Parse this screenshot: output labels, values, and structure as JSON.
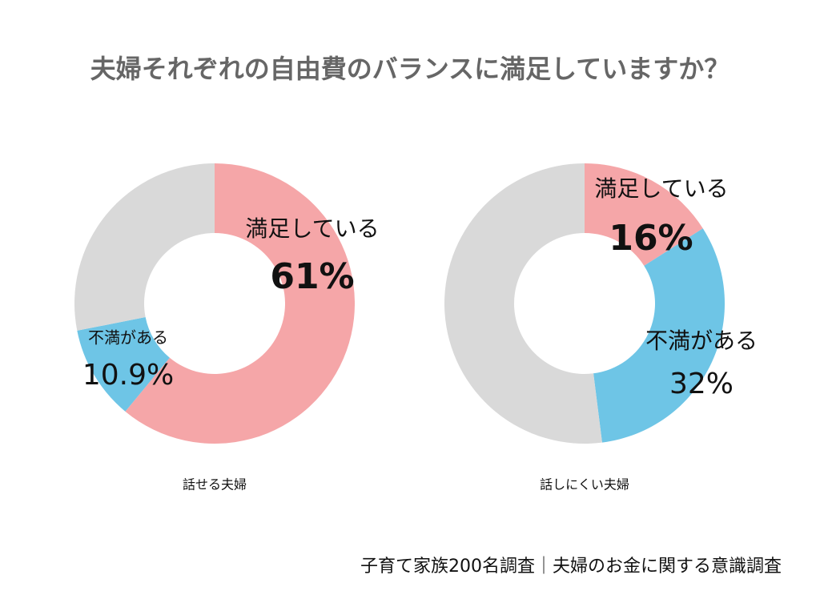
{
  "title": "夫婦それぞれの自由費のバランスに満足していますか？",
  "footnote": "子育て家族200名調査｜夫婦のお金に関する意識調査",
  "chart_data": [
    {
      "type": "pie",
      "label": "話せる夫婦",
      "categories": [
        "満足している",
        "不満がある",
        null
      ],
      "values": [
        61,
        10.9,
        28.1
      ],
      "value_labels": [
        "61%",
        "10.9%",
        null
      ],
      "colors": [
        "#f5a6a8",
        "#6ec5e6",
        "#d9d9d9"
      ]
    },
    {
      "type": "pie",
      "label": "話しにくい夫婦",
      "categories": [
        "満足している",
        "不満がある",
        null
      ],
      "values": [
        16,
        32,
        52
      ],
      "value_labels": [
        "16%",
        "32%",
        null
      ],
      "colors": [
        "#f5a6a8",
        "#6ec5e6",
        "#d9d9d9"
      ]
    }
  ]
}
